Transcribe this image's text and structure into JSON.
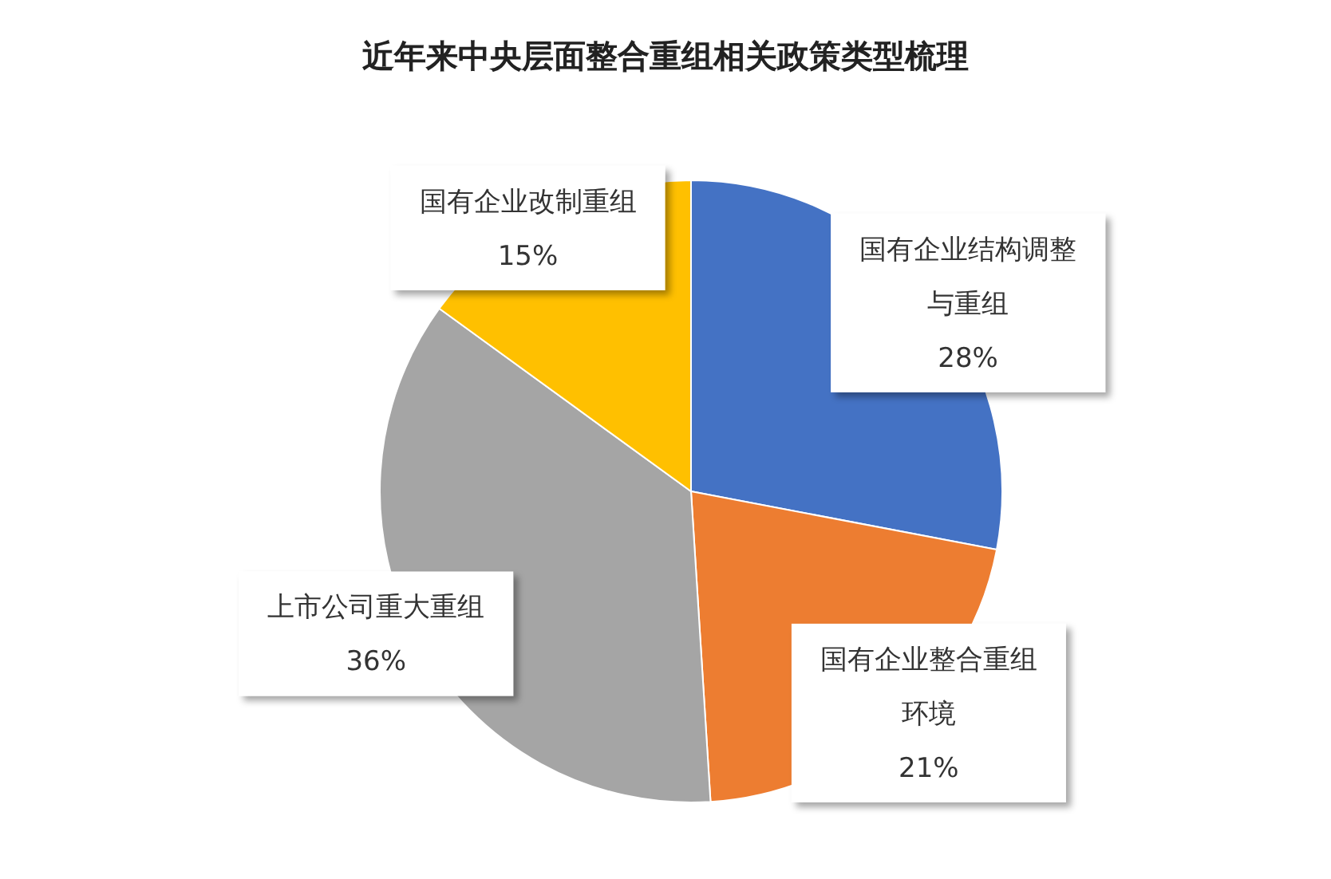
{
  "chart_data": {
    "type": "pie",
    "title": "近年来中央层面整合重组相关政策类型梳理",
    "categories": [
      "国有企业结构调整与重组",
      "国有企业整合重组环境",
      "上市公司重大重组",
      "国有企业改制重组"
    ],
    "values": [
      28,
      21,
      36,
      15
    ],
    "value_labels": [
      "28%",
      "21%",
      "36%",
      "15%"
    ],
    "colors": [
      "#4472c4",
      "#ed7d31",
      "#a5a5a5",
      "#ffc000"
    ]
  }
}
